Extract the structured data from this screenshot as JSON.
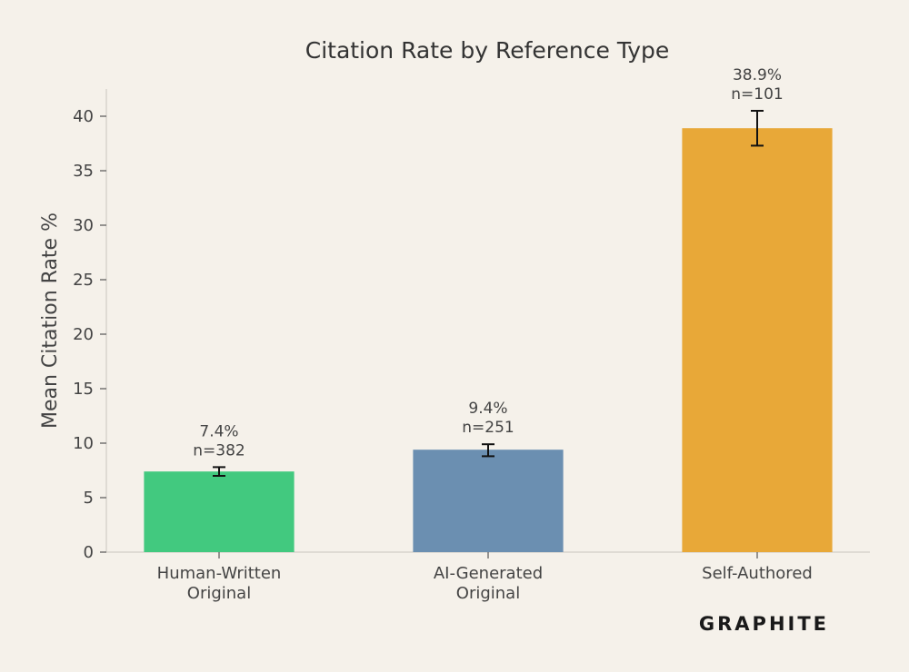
{
  "chart_data": {
    "type": "bar",
    "title": "Citation Rate by Reference Type",
    "xlabel": "",
    "ylabel": "Mean Citation Rate %",
    "ylim": [
      0,
      42.5
    ],
    "yticks": [
      0,
      5,
      10,
      15,
      20,
      25,
      30,
      35,
      40
    ],
    "grid": false,
    "categories": [
      [
        "Human-Written",
        "Original"
      ],
      [
        "AI-Generated",
        "Original"
      ],
      [
        "Self-Authored"
      ]
    ],
    "values": [
      7.4,
      9.4,
      38.9
    ],
    "error_low": [
      7.0,
      8.8,
      37.3
    ],
    "error_high": [
      7.8,
      9.9,
      40.5
    ],
    "value_labels": [
      "7.4%",
      "9.4%",
      "38.9%"
    ],
    "count_labels": [
      "n=382",
      "n=251",
      "n=101"
    ],
    "colors": [
      "#42c97f",
      "#6b8fb1",
      "#e8a838"
    ]
  },
  "brand": {
    "logo_text": "GRAPHITE"
  }
}
